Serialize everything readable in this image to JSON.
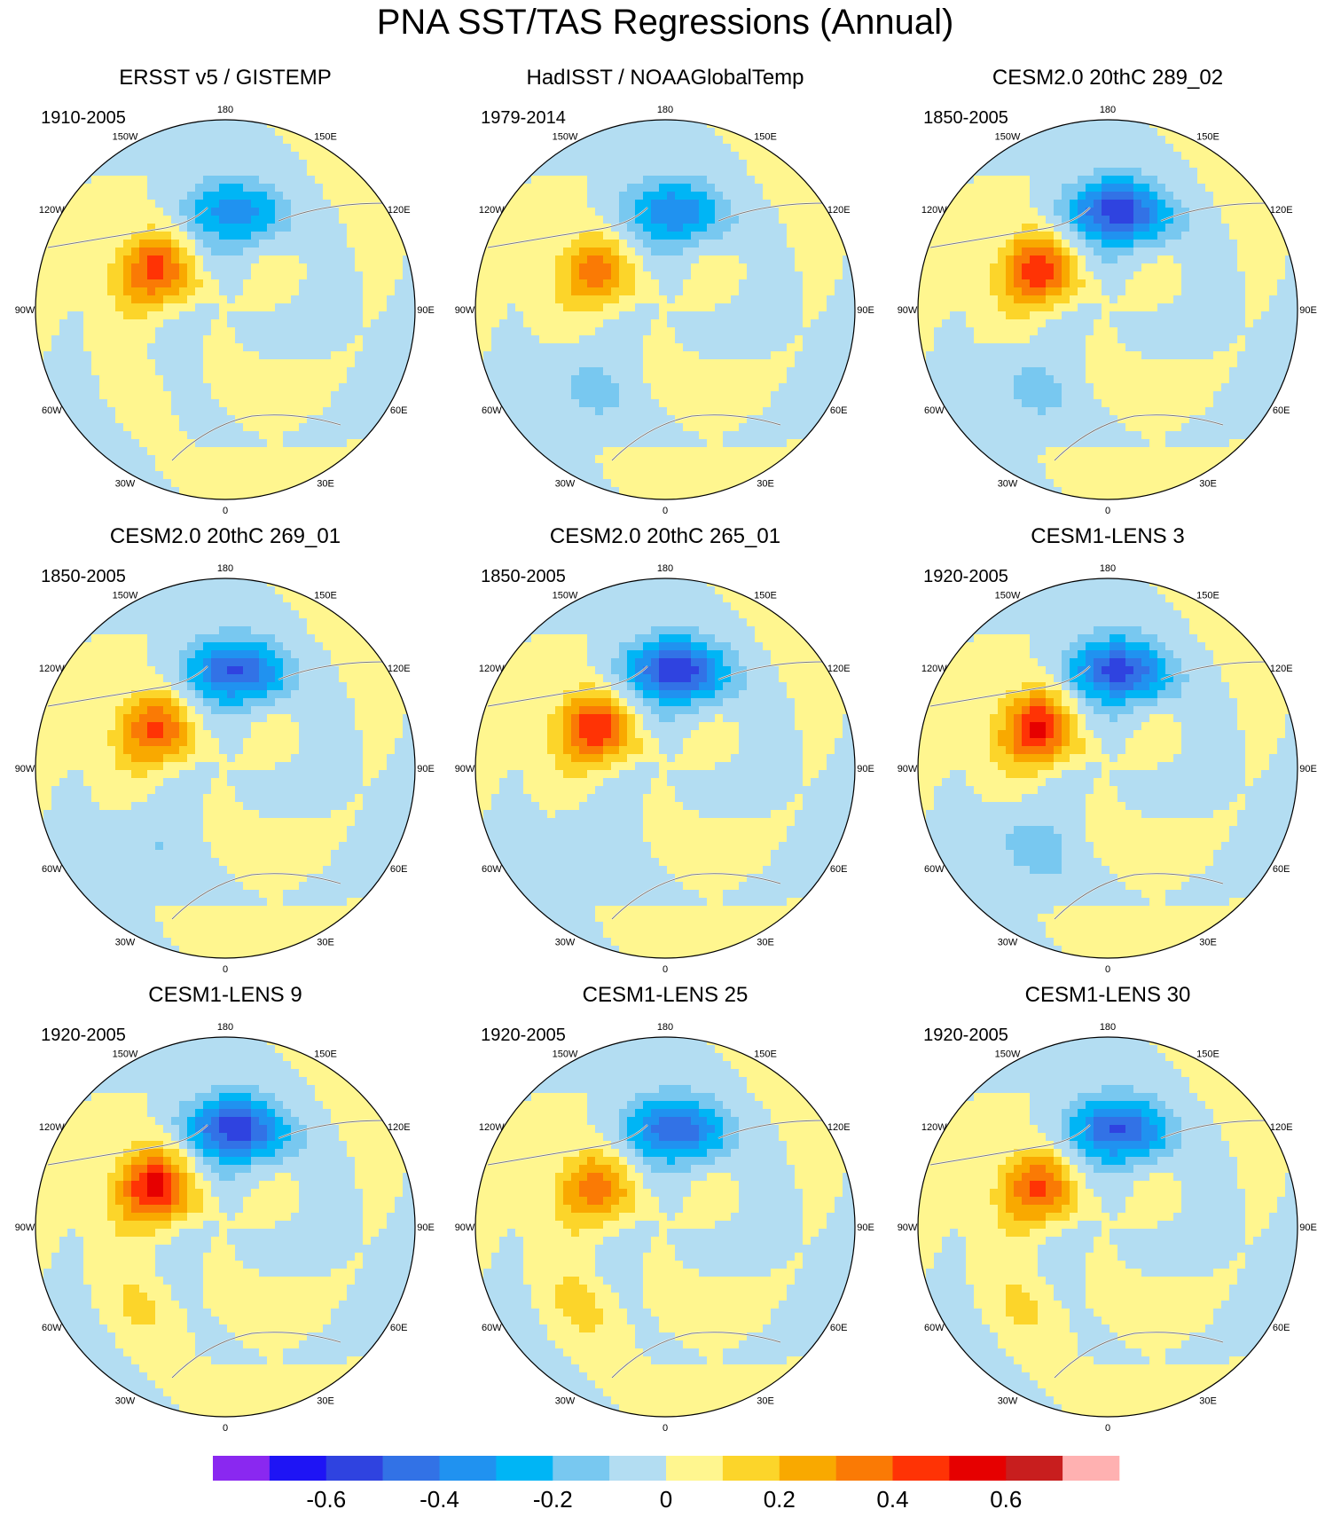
{
  "title": "PNA SST/TAS Regressions (Annual)",
  "chart_data": {
    "type": "contour-map",
    "title": "PNA SST/TAS Regressions (Annual)",
    "projection": "north-polar-stereographic",
    "longitude_labels": [
      "180",
      "150E",
      "120E",
      "90E",
      "60E",
      "30E",
      "0",
      "30W",
      "60W",
      "90W",
      "120W",
      "150W"
    ],
    "colorbar": {
      "levels": [
        -0.7,
        -0.6,
        -0.5,
        -0.4,
        -0.3,
        -0.2,
        -0.1,
        0,
        0.1,
        0.2,
        0.3,
        0.4,
        0.5,
        0.6,
        0.7
      ],
      "tick_labels": [
        "-0.6",
        "-0.4",
        "-0.2",
        "0",
        "0.2",
        "0.4",
        "0.6"
      ],
      "colors": [
        "#8a28f0",
        "#1e14f5",
        "#2f43e0",
        "#3272e6",
        "#2092f0",
        "#00b5f5",
        "#78c8f0",
        "#b3ddf2",
        "#fff68f",
        "#fcd52a",
        "#f9a900",
        "#fa7a05",
        "#ff3305",
        "#e60000",
        "#c81e1e",
        "#ffb1b1"
      ]
    },
    "panels": [
      {
        "title": "ERSST v5 / GISTEMP",
        "period": "1910-2005",
        "pos_amp": 0.42,
        "neg_amp": 0.38,
        "atl_amp": 0.06
      },
      {
        "title": "HadISST / NOAAGlobalTemp",
        "period": "1979-2014",
        "pos_amp": 0.32,
        "neg_amp": 0.4,
        "atl_amp": -0.12
      },
      {
        "title": "CESM2.0 20thC 289_02",
        "period": "1850-2005",
        "pos_amp": 0.45,
        "neg_amp": 0.58,
        "atl_amp": -0.12
      },
      {
        "title": "CESM2.0 20thC 269_01",
        "period": "1850-2005",
        "pos_amp": 0.4,
        "neg_amp": 0.52,
        "atl_amp": -0.08
      },
      {
        "title": "CESM2.0 20thC 265_01",
        "period": "1850-2005",
        "pos_amp": 0.47,
        "neg_amp": 0.6,
        "atl_amp": -0.06
      },
      {
        "title": "CESM1-LENS 3",
        "period": "1920-2005",
        "pos_amp": 0.5,
        "neg_amp": 0.55,
        "atl_amp": -0.14
      },
      {
        "title": "CESM1-LENS 9",
        "period": "1920-2005",
        "pos_amp": 0.52,
        "neg_amp": 0.58,
        "atl_amp": 0.14
      },
      {
        "title": "CESM1-LENS 25",
        "period": "1920-2005",
        "pos_amp": 0.34,
        "neg_amp": 0.5,
        "atl_amp": 0.16
      },
      {
        "title": "CESM1-LENS 30",
        "period": "1920-2005",
        "pos_amp": 0.4,
        "neg_amp": 0.52,
        "atl_amp": 0.14
      }
    ]
  }
}
